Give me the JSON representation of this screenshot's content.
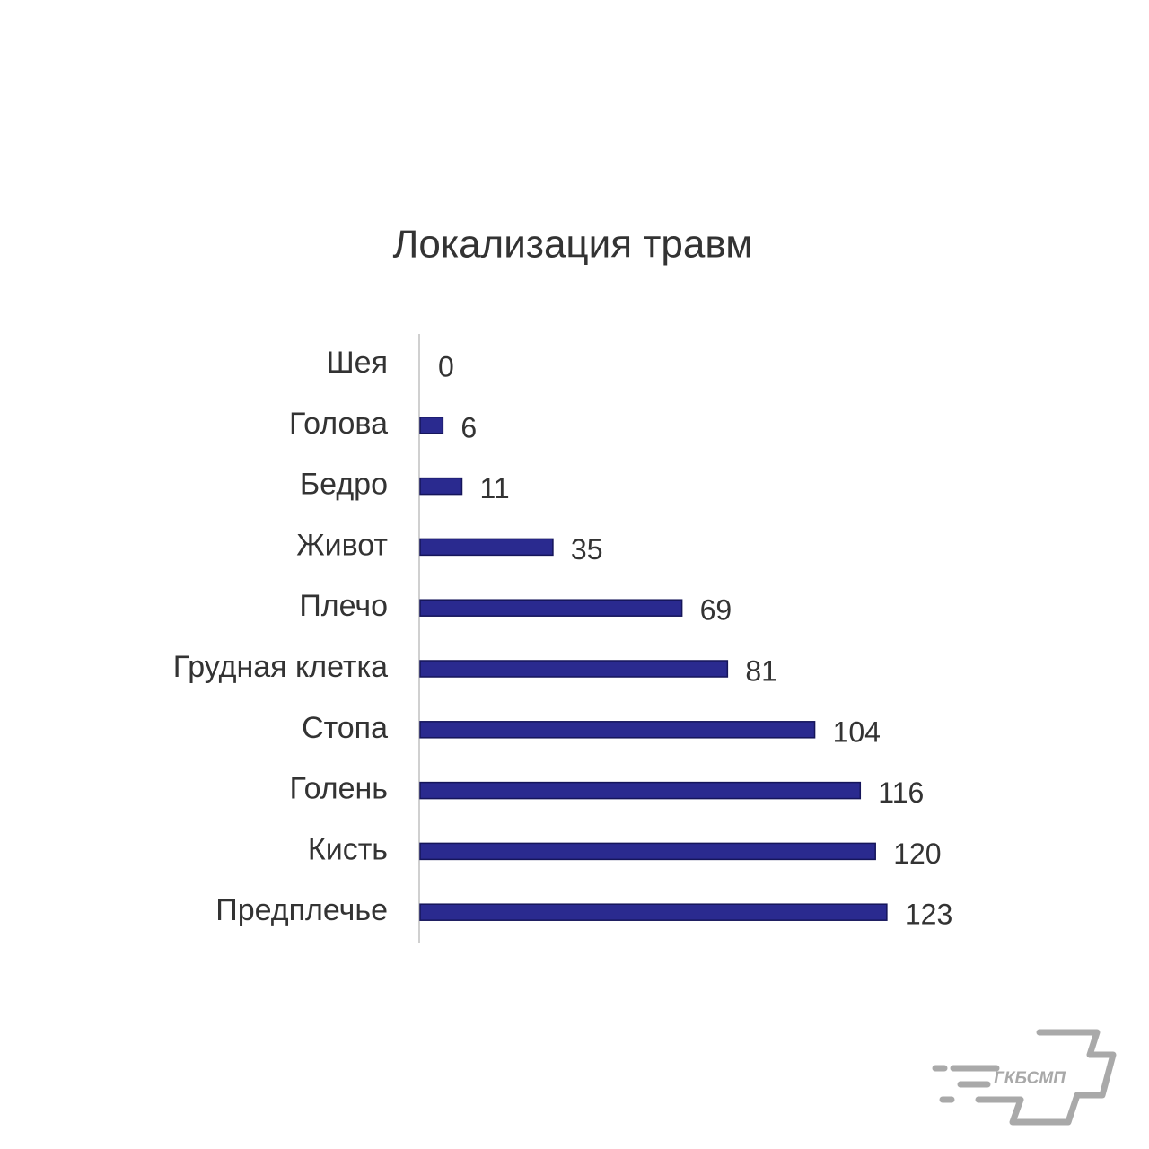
{
  "chart_data": {
    "type": "hbar",
    "title": "Локализация травм",
    "categories": [
      "Шея",
      "Голова",
      "Бедро",
      "Живот",
      "Плечо",
      "Грудная клетка",
      "Стопа",
      "Голень",
      "Кисть",
      "Предплечье"
    ],
    "values": [
      0,
      6,
      11,
      35,
      69,
      81,
      104,
      116,
      120,
      123
    ],
    "color": "#2a2a8f",
    "xlim": [
      0,
      150
    ]
  },
  "logo": {
    "text": "ГКБСМП"
  }
}
